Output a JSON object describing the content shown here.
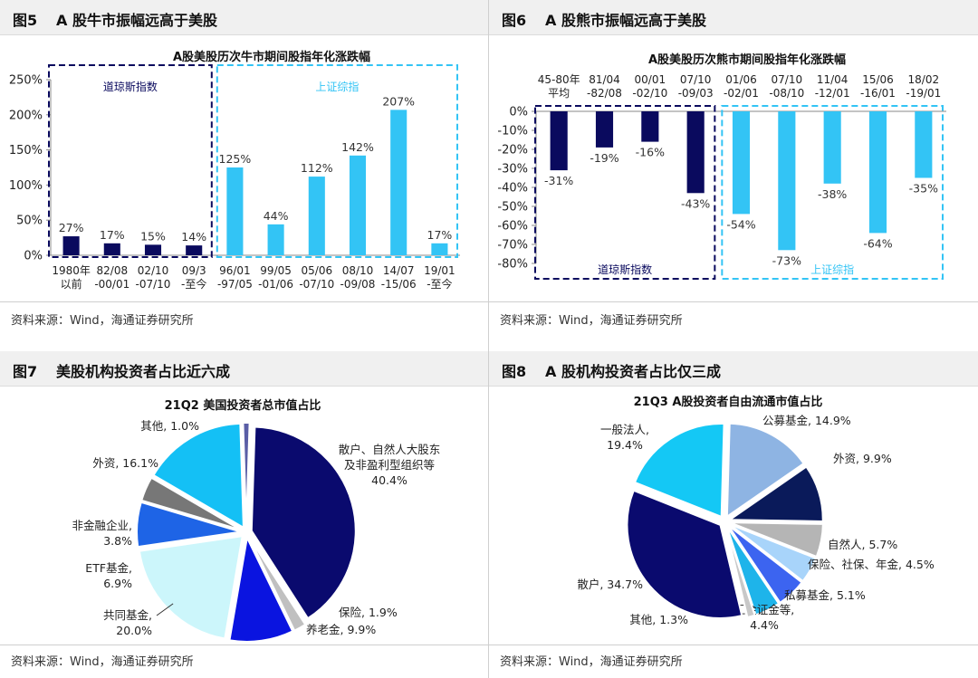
{
  "fig5": {
    "num": "图5",
    "title": "A 股牛市振幅远高于美股",
    "source": "资料来源：Wind，海通证券研究所"
  },
  "fig6": {
    "num": "图6",
    "title": "A 股熊市振幅远高于美股",
    "source": "资料来源：Wind，海通证券研究所"
  },
  "fig7": {
    "num": "图7",
    "title": "美股机构投资者占比近六成",
    "source": "资料来源：Wind，海通证券研究所"
  },
  "fig8": {
    "num": "图8",
    "title": "A 股机构投资者占比仅三成",
    "source": "资料来源：Wind，海通证券研究所"
  },
  "chart_data": [
    {
      "type": "bar",
      "title": "A股美股历次牛市期间股指年化涨跌幅",
      "categories": [
        [
          "1980年",
          "以前"
        ],
        [
          "82/08",
          "-00/01"
        ],
        [
          "02/10",
          "-07/10"
        ],
        [
          "09/3",
          "-至今"
        ],
        [
          "96/01",
          "-97/05"
        ],
        [
          "99/05",
          "-01/06"
        ],
        [
          "05/06",
          "-07/10"
        ],
        [
          "08/10",
          "-09/08"
        ],
        [
          "14/07",
          "-15/06"
        ],
        [
          "19/01",
          "-至今"
        ]
      ],
      "values": [
        27,
        17,
        15,
        14,
        125,
        44,
        112,
        142,
        207,
        17
      ],
      "labels": [
        "27%",
        "17%",
        "15%",
        "14%",
        "125%",
        "44%",
        "112%",
        "142%",
        "207%",
        "17%"
      ],
      "groups": [
        {
          "name": "道琼斯指数",
          "start": 0,
          "end": 3,
          "color": "#0a0a5e"
        },
        {
          "name": "上证综指",
          "start": 4,
          "end": 9,
          "color": "#33c4f5"
        }
      ],
      "yticks": [
        "250%",
        "200%",
        "150%",
        "100%",
        "50%",
        "0%"
      ],
      "ylim": [
        0,
        250
      ],
      "grid": false
    },
    {
      "type": "bar",
      "title": "A股美股历次熊市期间股指年化涨跌幅",
      "categories": [
        [
          "45-80年",
          "平均"
        ],
        [
          "81/04",
          "-82/08"
        ],
        [
          "00/01",
          "-02/10"
        ],
        [
          "07/10",
          "-09/03"
        ],
        [
          "01/06",
          "-02/01"
        ],
        [
          "07/10",
          "-08/10"
        ],
        [
          "11/04",
          "-12/01"
        ],
        [
          "15/06",
          "-16/01"
        ],
        [
          "18/02",
          "-19/01"
        ]
      ],
      "values": [
        -31,
        -19,
        -16,
        -43,
        -54,
        -73,
        -38,
        -64,
        -35
      ],
      "labels": [
        "-31%",
        "-19%",
        "-16%",
        "-43%",
        "-54%",
        "-73%",
        "-38%",
        "-64%",
        "-35%"
      ],
      "groups": [
        {
          "name": "道琼斯指数",
          "start": 0,
          "end": 3,
          "color": "#0a0a5e"
        },
        {
          "name": "上证综指",
          "start": 4,
          "end": 8,
          "color": "#33c4f5"
        }
      ],
      "yticks": [
        "0%",
        "-10%",
        "-20%",
        "-30%",
        "-40%",
        "-50%",
        "-60%",
        "-70%",
        "-80%"
      ],
      "ylim": [
        -80,
        0
      ],
      "grid": false
    },
    {
      "type": "pie",
      "title": "21Q2 美国投资者总市值占比",
      "slices": [
        {
          "label": [
            "散户、自然人大股东",
            "及非盈利型组织等",
            "40.4%"
          ],
          "value": 40.4,
          "color": "#0a0a6e"
        },
        {
          "label": [
            "保险, 1.9%"
          ],
          "value": 1.9,
          "color": "#c0c0c0"
        },
        {
          "label": [
            "养老金, 9.9%"
          ],
          "value": 9.9,
          "color": "#0a14e0"
        },
        {
          "label": [
            "共同基金,",
            "20.0%"
          ],
          "value": 20.0,
          "color": "#ccf6fb"
        },
        {
          "label": [
            "ETF基金,",
            "6.9%"
          ],
          "value": 6.9,
          "color": "#1e64e6"
        },
        {
          "label": [
            "非金融企业,",
            "3.8%"
          ],
          "value": 3.8,
          "color": "#777777"
        },
        {
          "label": [
            "外资, 16.1%"
          ],
          "value": 16.1,
          "color": "#14c0f5"
        },
        {
          "label": [
            "其他, 1.0%"
          ],
          "value": 1.0,
          "color": "#5a5ea6"
        }
      ]
    },
    {
      "type": "pie",
      "title": "21Q3 A股投资者自由流通市值占比",
      "slices": [
        {
          "label": [
            "公募基金, 14.9%"
          ],
          "value": 14.9,
          "color": "#8eb4e3"
        },
        {
          "label": [
            "外资, 9.9%"
          ],
          "value": 9.9,
          "color": "#0a1a5a"
        },
        {
          "label": [
            "自然人, 5.7%"
          ],
          "value": 5.7,
          "color": "#b5b5b5"
        },
        {
          "label": [
            "保险、社保、年金, 4.5%"
          ],
          "value": 4.5,
          "color": "#a8d4fa"
        },
        {
          "label": [
            "私募基金, 5.1%"
          ],
          "value": 5.1,
          "color": "#3c64f0"
        },
        {
          "label": [
            "汇金证金等,",
            "4.4%"
          ],
          "value": 4.4,
          "color": "#1eb4ea"
        },
        {
          "label": [
            "其他, 1.3%"
          ],
          "value": 1.3,
          "color": "#c8c8c8"
        },
        {
          "label": [
            "散户, 34.7%"
          ],
          "value": 34.7,
          "color": "#0a0a6e"
        },
        {
          "label": [
            "一般法人,",
            "19.4%"
          ],
          "value": 19.4,
          "color": "#14c8f5"
        }
      ]
    }
  ]
}
